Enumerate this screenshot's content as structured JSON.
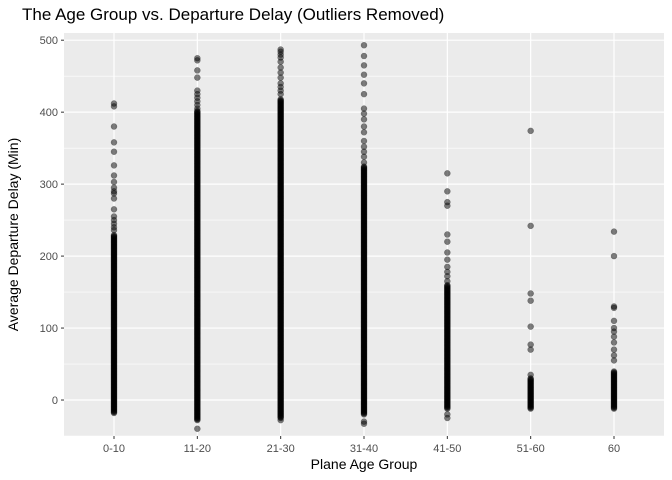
{
  "chart_data": {
    "type": "scatter",
    "title": "The Age Group vs. Departure Delay (Outliers Removed)",
    "xlabel": "Plane Age Group",
    "ylabel": "Average Departure Delay (Min)",
    "categories": [
      "0-10",
      "11-20",
      "21-30",
      "31-40",
      "41-50",
      "51-60",
      "60"
    ],
    "ylim": [
      -50,
      510
    ],
    "yticks": [
      0,
      100,
      200,
      300,
      400,
      500
    ],
    "grid": true,
    "point_color": "#000000",
    "point_alpha": 0.5,
    "panel_color": "#ebebeb",
    "grid_color": "#ffffff",
    "groups": [
      {
        "category": "0-10",
        "dense_range": [
          -18,
          230
        ],
        "points": [
          412,
          408,
          380,
          358,
          345,
          326,
          312,
          303,
          295,
          290,
          287,
          280,
          265,
          255,
          250,
          245,
          240,
          236
        ]
      },
      {
        "category": "11-20",
        "dense_range": [
          -28,
          402
        ],
        "points": [
          475,
          472,
          458,
          448,
          430,
          425,
          420,
          415,
          410,
          405,
          -40
        ]
      },
      {
        "category": "21-30",
        "dense_range": [
          -25,
          418
        ],
        "points": [
          487,
          484,
          480,
          476,
          470,
          462,
          455,
          448,
          440,
          435,
          430,
          425,
          -28
        ]
      },
      {
        "category": "31-40",
        "dense_range": [
          -20,
          325
        ],
        "points": [
          493,
          478,
          465,
          452,
          440,
          425,
          405,
          398,
          390,
          380,
          372,
          360,
          352,
          345,
          338,
          330,
          -30,
          -33
        ]
      },
      {
        "category": "41-50",
        "dense_range": [
          -12,
          160
        ],
        "points": [
          315,
          290,
          275,
          270,
          230,
          220,
          205,
          195,
          185,
          178,
          172,
          165,
          -20,
          -25
        ]
      },
      {
        "category": "51-60",
        "dense_range": [
          -12,
          30
        ],
        "points": [
          374,
          242,
          148,
          138,
          102,
          77,
          70,
          35
        ]
      },
      {
        "category": "60",
        "dense_range": [
          -12,
          40
        ],
        "points": [
          234,
          200,
          130,
          128,
          110,
          100,
          95,
          88,
          80,
          70,
          62,
          55
        ]
      }
    ]
  }
}
